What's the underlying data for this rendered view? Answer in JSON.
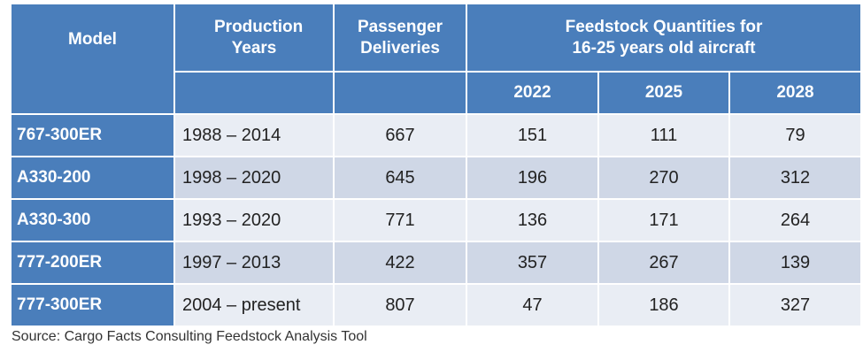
{
  "headers": {
    "model": "Model",
    "production_years": "Production Years",
    "passenger_deliveries": "Passenger Deliveries",
    "feedstock_title": "Feedstock Quantities for 16-25 years old aircraft",
    "years": [
      "2022",
      "2025",
      "2028"
    ]
  },
  "rows": [
    {
      "model": "767-300ER",
      "years": "1988 – 2014",
      "deliveries": "667",
      "y2022": "151",
      "y2025": "111",
      "y2028": "79"
    },
    {
      "model": "A330-200",
      "years": "1998 – 2020",
      "deliveries": "645",
      "y2022": "196",
      "y2025": "270",
      "y2028": "312"
    },
    {
      "model": "A330-300",
      "years": "1993 – 2020",
      "deliveries": "771",
      "y2022": "136",
      "y2025": "171",
      "y2028": "264"
    },
    {
      "model": "777-200ER",
      "years": "1997 – 2013",
      "deliveries": "422",
      "y2022": "357",
      "y2025": "267",
      "y2028": "139"
    },
    {
      "model": "777-300ER",
      "years": "2004 – present",
      "deliveries": "807",
      "y2022": "47",
      "y2025": "186",
      "y2028": "327"
    }
  ],
  "source": "Source: Cargo Facts Consulting Feedstock Analysis Tool",
  "colors": {
    "header_blue": "#4a7ebb",
    "row_light": "#e9edf4",
    "row_dark": "#cfd7e6"
  }
}
